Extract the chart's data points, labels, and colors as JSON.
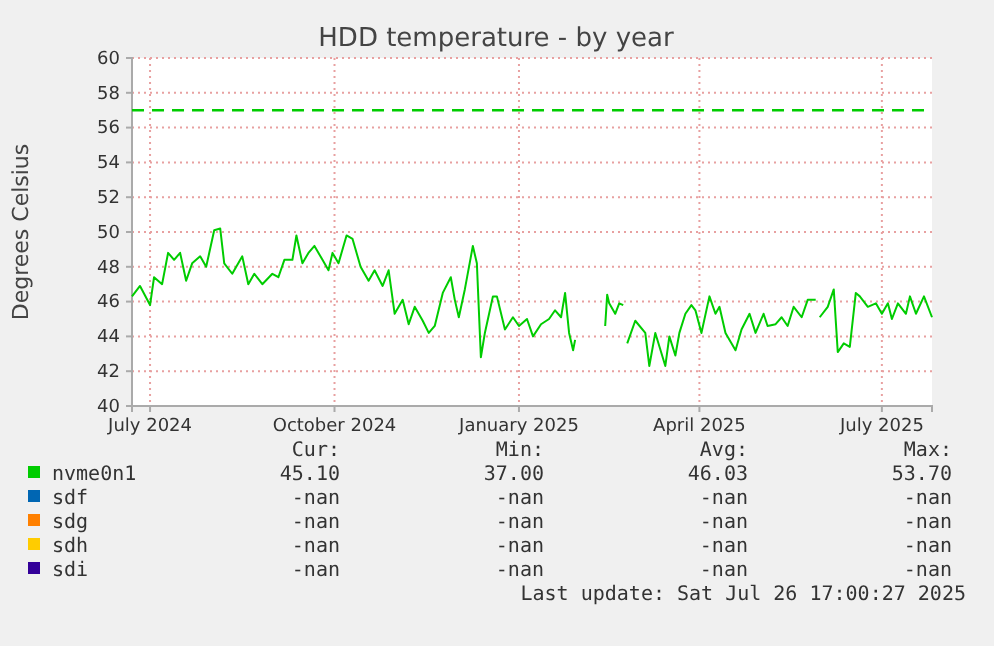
{
  "chart_data": {
    "type": "line",
    "title": "HDD temperature - by year",
    "ylabel": "Degrees Celsius",
    "x": [
      "2024-06-22",
      "2024-06-26",
      "2024-07-01",
      "2024-07-03",
      "2024-07-07",
      "2024-07-10",
      "2024-07-13",
      "2024-07-16",
      "2024-07-19",
      "2024-07-22",
      "2024-07-26",
      "2024-07-29",
      "2024-08-02",
      "2024-08-05",
      "2024-08-07",
      "2024-08-11",
      "2024-08-16",
      "2024-08-19",
      "2024-08-22",
      "2024-08-26",
      "2024-08-31",
      "2024-09-03",
      "2024-09-06",
      "2024-09-10",
      "2024-09-12",
      "2024-09-15",
      "2024-09-18",
      "2024-09-21",
      "2024-09-25",
      "2024-09-28",
      "2024-09-30",
      "2024-10-03",
      "2024-10-07",
      "2024-10-10",
      "2024-10-14",
      "2024-10-18",
      "2024-10-21",
      "2024-10-25",
      "2024-10-28",
      "2024-10-31",
      "2024-11-04",
      "2024-11-07",
      "2024-11-10",
      "2024-11-14",
      "2024-11-17",
      "2024-11-20",
      "2024-11-24",
      "2024-11-28",
      "2024-11-30",
      "2024-12-02",
      "2024-12-05",
      "2024-12-09",
      "2024-12-11",
      "2024-12-13",
      "2024-12-15",
      "2024-12-19",
      "2024-12-21",
      "2024-12-25",
      "2024-12-29",
      "2025-01-01",
      "2025-01-05",
      "2025-01-08",
      "2025-01-12",
      "2025-01-16",
      "2025-01-19",
      "2025-01-22",
      "2025-01-24",
      "2025-01-26",
      "2025-01-28",
      "2025-01-29",
      "2025-02-05",
      "2025-02-13",
      "2025-02-14",
      "2025-02-15",
      "2025-02-17",
      "2025-02-18",
      "2025-02-20",
      "2025-02-22",
      "2025-02-23",
      "2025-02-24",
      "2025-02-28",
      "2025-03-05",
      "2025-03-07",
      "2025-03-10",
      "2025-03-15",
      "2025-03-17",
      "2025-03-20",
      "2025-03-22",
      "2025-03-25",
      "2025-03-28",
      "2025-03-30",
      "2025-04-02",
      "2025-04-06",
      "2025-04-09",
      "2025-04-11",
      "2025-04-14",
      "2025-04-19",
      "2025-04-22",
      "2025-04-26",
      "2025-04-29",
      "2025-05-03",
      "2025-05-05",
      "2025-05-09",
      "2025-05-12",
      "2025-05-15",
      "2025-05-18",
      "2025-05-22",
      "2025-05-25",
      "2025-05-29",
      "2025-05-30",
      "2025-05-31",
      "2025-06-04",
      "2025-06-07",
      "2025-06-09",
      "2025-06-12",
      "2025-06-15",
      "2025-06-18",
      "2025-06-20",
      "2025-06-24",
      "2025-06-28",
      "2025-07-01",
      "2025-07-04",
      "2025-07-06",
      "2025-07-09",
      "2025-07-13",
      "2025-07-15",
      "2025-07-18",
      "2025-07-22",
      "2025-07-26"
    ],
    "series": [
      {
        "name": "nvme0n1",
        "color": "#00cc00",
        "values": [
          46.3,
          46.9,
          45.8,
          47.4,
          47.0,
          48.8,
          48.4,
          48.8,
          47.2,
          48.2,
          48.6,
          48.0,
          50.1,
          50.2,
          48.2,
          47.6,
          48.6,
          47.0,
          47.6,
          47.0,
          47.6,
          47.4,
          48.4,
          48.4,
          49.8,
          48.2,
          48.8,
          49.2,
          48.4,
          47.8,
          48.8,
          48.2,
          49.8,
          49.6,
          48.0,
          47.2,
          47.8,
          46.9,
          47.8,
          45.3,
          46.1,
          44.7,
          45.7,
          44.9,
          44.2,
          44.6,
          46.5,
          47.4,
          46.1,
          45.1,
          46.7,
          49.2,
          48.2,
          42.8,
          44.2,
          46.3,
          46.3,
          44.4,
          45.1,
          44.6,
          45.0,
          44.0,
          44.7,
          45.0,
          45.5,
          45.1,
          46.5,
          44.2,
          43.2,
          43.8,
          null,
          44.6,
          46.4,
          45.9,
          45.5,
          45.3,
          45.9,
          45.8,
          null,
          43.6,
          44.9,
          44.2,
          42.3,
          44.2,
          42.3,
          44.0,
          42.9,
          44.2,
          45.3,
          45.8,
          45.5,
          44.2,
          46.3,
          45.3,
          45.7,
          44.2,
          43.2,
          44.4,
          45.3,
          44.2,
          45.3,
          44.6,
          44.7,
          45.1,
          44.6,
          45.7,
          45.1,
          46.1,
          46.1,
          null,
          45.1,
          45.7,
          46.7,
          43.1,
          43.6,
          43.4,
          46.5,
          46.3,
          45.7,
          45.9,
          45.3,
          45.9,
          45.0,
          45.9,
          45.3,
          46.3,
          45.3,
          46.3,
          45.1
        ]
      },
      {
        "name": "sdf",
        "color": "#0066b3",
        "values": [
          null,
          null,
          null,
          null,
          null,
          null,
          null,
          null,
          null,
          null,
          null,
          null,
          null,
          null,
          null,
          null,
          null,
          null,
          null,
          null,
          null,
          null,
          null,
          null,
          null,
          null,
          null,
          null,
          null,
          null,
          null,
          null,
          null,
          null,
          null,
          null,
          null,
          null,
          null,
          null,
          null,
          null,
          null,
          null,
          null,
          null,
          null,
          null,
          null,
          null,
          null,
          null,
          null,
          null,
          null,
          null,
          null,
          null,
          null,
          null,
          null,
          null,
          null,
          null,
          null,
          null,
          null,
          null,
          null,
          null,
          null,
          null,
          null,
          null,
          null,
          null,
          null,
          null,
          null,
          null,
          null,
          null,
          null,
          null,
          null,
          null,
          null,
          null,
          null,
          null,
          null,
          null,
          null,
          null,
          null,
          null,
          null,
          null,
          null,
          null,
          null,
          null,
          null,
          null,
          null,
          null,
          null,
          null,
          null,
          null,
          null,
          null,
          null,
          null,
          null,
          null,
          null,
          null,
          null,
          null,
          null,
          null,
          null,
          null,
          null,
          null,
          null,
          null,
          null
        ]
      },
      {
        "name": "sdg",
        "color": "#ff8000",
        "values": [
          null,
          null,
          null,
          null,
          null,
          null,
          null,
          null,
          null,
          null,
          null,
          null,
          null,
          null,
          null,
          null,
          null,
          null,
          null,
          null,
          null,
          null,
          null,
          null,
          null,
          null,
          null,
          null,
          null,
          null,
          null,
          null,
          null,
          null,
          null,
          null,
          null,
          null,
          null,
          null,
          null,
          null,
          null,
          null,
          null,
          null,
          null,
          null,
          null,
          null,
          null,
          null,
          null,
          null,
          null,
          null,
          null,
          null,
          null,
          null,
          null,
          null,
          null,
          null,
          null,
          null,
          null,
          null,
          null,
          null,
          null,
          null,
          null,
          null,
          null,
          null,
          null,
          null,
          null,
          null,
          null,
          null,
          null,
          null,
          null,
          null,
          null,
          null,
          null,
          null,
          null,
          null,
          null,
          null,
          null,
          null,
          null,
          null,
          null,
          null,
          null,
          null,
          null,
          null,
          null,
          null,
          null,
          null,
          null,
          null,
          null,
          null,
          null,
          null,
          null,
          null,
          null,
          null,
          null,
          null,
          null,
          null,
          null,
          null,
          null,
          null,
          null,
          null,
          null
        ]
      },
      {
        "name": "sdh",
        "color": "#ffcc00",
        "values": [
          null,
          null,
          null,
          null,
          null,
          null,
          null,
          null,
          null,
          null,
          null,
          null,
          null,
          null,
          null,
          null,
          null,
          null,
          null,
          null,
          null,
          null,
          null,
          null,
          null,
          null,
          null,
          null,
          null,
          null,
          null,
          null,
          null,
          null,
          null,
          null,
          null,
          null,
          null,
          null,
          null,
          null,
          null,
          null,
          null,
          null,
          null,
          null,
          null,
          null,
          null,
          null,
          null,
          null,
          null,
          null,
          null,
          null,
          null,
          null,
          null,
          null,
          null,
          null,
          null,
          null,
          null,
          null,
          null,
          null,
          null,
          null,
          null,
          null,
          null,
          null,
          null,
          null,
          null,
          null,
          null,
          null,
          null,
          null,
          null,
          null,
          null,
          null,
          null,
          null,
          null,
          null,
          null,
          null,
          null,
          null,
          null,
          null,
          null,
          null,
          null,
          null,
          null,
          null,
          null,
          null,
          null,
          null,
          null,
          null,
          null,
          null,
          null,
          null,
          null,
          null,
          null,
          null,
          null,
          null,
          null,
          null,
          null,
          null,
          null,
          null,
          null,
          null,
          null
        ]
      },
      {
        "name": "sdi",
        "color": "#330099",
        "values": [
          null,
          null,
          null,
          null,
          null,
          null,
          null,
          null,
          null,
          null,
          null,
          null,
          null,
          null,
          null,
          null,
          null,
          null,
          null,
          null,
          null,
          null,
          null,
          null,
          null,
          null,
          null,
          null,
          null,
          null,
          null,
          null,
          null,
          null,
          null,
          null,
          null,
          null,
          null,
          null,
          null,
          null,
          null,
          null,
          null,
          null,
          null,
          null,
          null,
          null,
          null,
          null,
          null,
          null,
          null,
          null,
          null,
          null,
          null,
          null,
          null,
          null,
          null,
          null,
          null,
          null,
          null,
          null,
          null,
          null,
          null,
          null,
          null,
          null,
          null,
          null,
          null,
          null,
          null,
          null,
          null,
          null,
          null,
          null,
          null,
          null,
          null,
          null,
          null,
          null,
          null,
          null,
          null,
          null,
          null,
          null,
          null,
          null,
          null,
          null,
          null,
          null,
          null,
          null,
          null,
          null,
          null,
          null,
          null,
          null,
          null,
          null,
          null,
          null,
          null,
          null,
          null,
          null,
          null,
          null,
          null,
          null,
          null,
          null,
          null,
          null,
          null,
          null,
          null
        ]
      }
    ],
    "xlim": [
      "2024-06-22",
      "2025-07-26"
    ],
    "xticks": [
      {
        "value": "2024-07-01",
        "label": "July 2024"
      },
      {
        "value": "2024-10-01",
        "label": "October 2024"
      },
      {
        "value": "2025-01-01",
        "label": "January 2025"
      },
      {
        "value": "2025-04-01",
        "label": "April 2025"
      },
      {
        "value": "2025-07-01",
        "label": "July 2025"
      }
    ],
    "ylim": [
      40,
      60
    ],
    "yticks": [
      40,
      42,
      44,
      46,
      48,
      50,
      52,
      54,
      56,
      58,
      60
    ],
    "grid": true,
    "legend": "bottom",
    "ref_lines": [
      {
        "axis": "y",
        "value": 57,
        "color": "#00cc00",
        "line_style": "dashed"
      }
    ],
    "annotations": [
      "Cur:",
      "Min:",
      "Avg:",
      "Max:",
      "45.10",
      "37.00",
      "46.03",
      "53.70",
      "-nan",
      "-nan",
      "-nan",
      "-nan",
      "-nan",
      "-nan",
      "-nan",
      "-nan",
      "-nan",
      "-nan",
      "-nan",
      "-nan",
      "-nan",
      "-nan",
      "-nan",
      "-nan",
      "Last update: Sat Jul 26 17:00:27 2025"
    ]
  }
}
